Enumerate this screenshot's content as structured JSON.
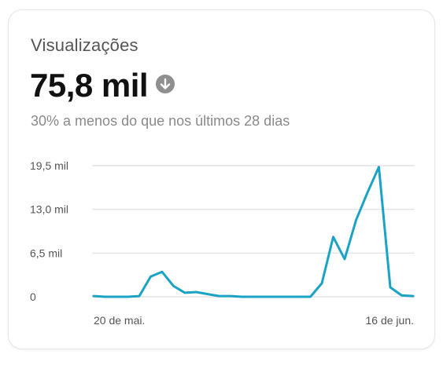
{
  "card": {
    "title": "Visualizações",
    "value": "75,8 mil",
    "trend_icon": "arrow-down-circle-icon",
    "subtitle": "30% a menos do que nos últimos 28 dias"
  },
  "colors": {
    "line": "#1aa3c4",
    "grid": "#e4e4e4",
    "icon": "#8f8f8f"
  },
  "chart_data": {
    "type": "line",
    "x_start_label": "20 de mai.",
    "x_end_label": "16 de jun.",
    "y_tick_labels": [
      "0",
      "6,5 mil",
      "13,0 mil",
      "19,5 mil"
    ],
    "y_ticks": [
      0,
      6500,
      13000,
      19500
    ],
    "ylim": [
      0,
      19500
    ],
    "grid": true,
    "series": [
      {
        "values": [
          100,
          0,
          0,
          0,
          100,
          3000,
          3700,
          1600,
          600,
          700,
          400,
          100,
          100,
          0,
          0,
          0,
          0,
          0,
          0,
          0,
          2000,
          8900,
          5600,
          11400,
          15500,
          19300,
          1400,
          200,
          100
        ]
      }
    ]
  }
}
